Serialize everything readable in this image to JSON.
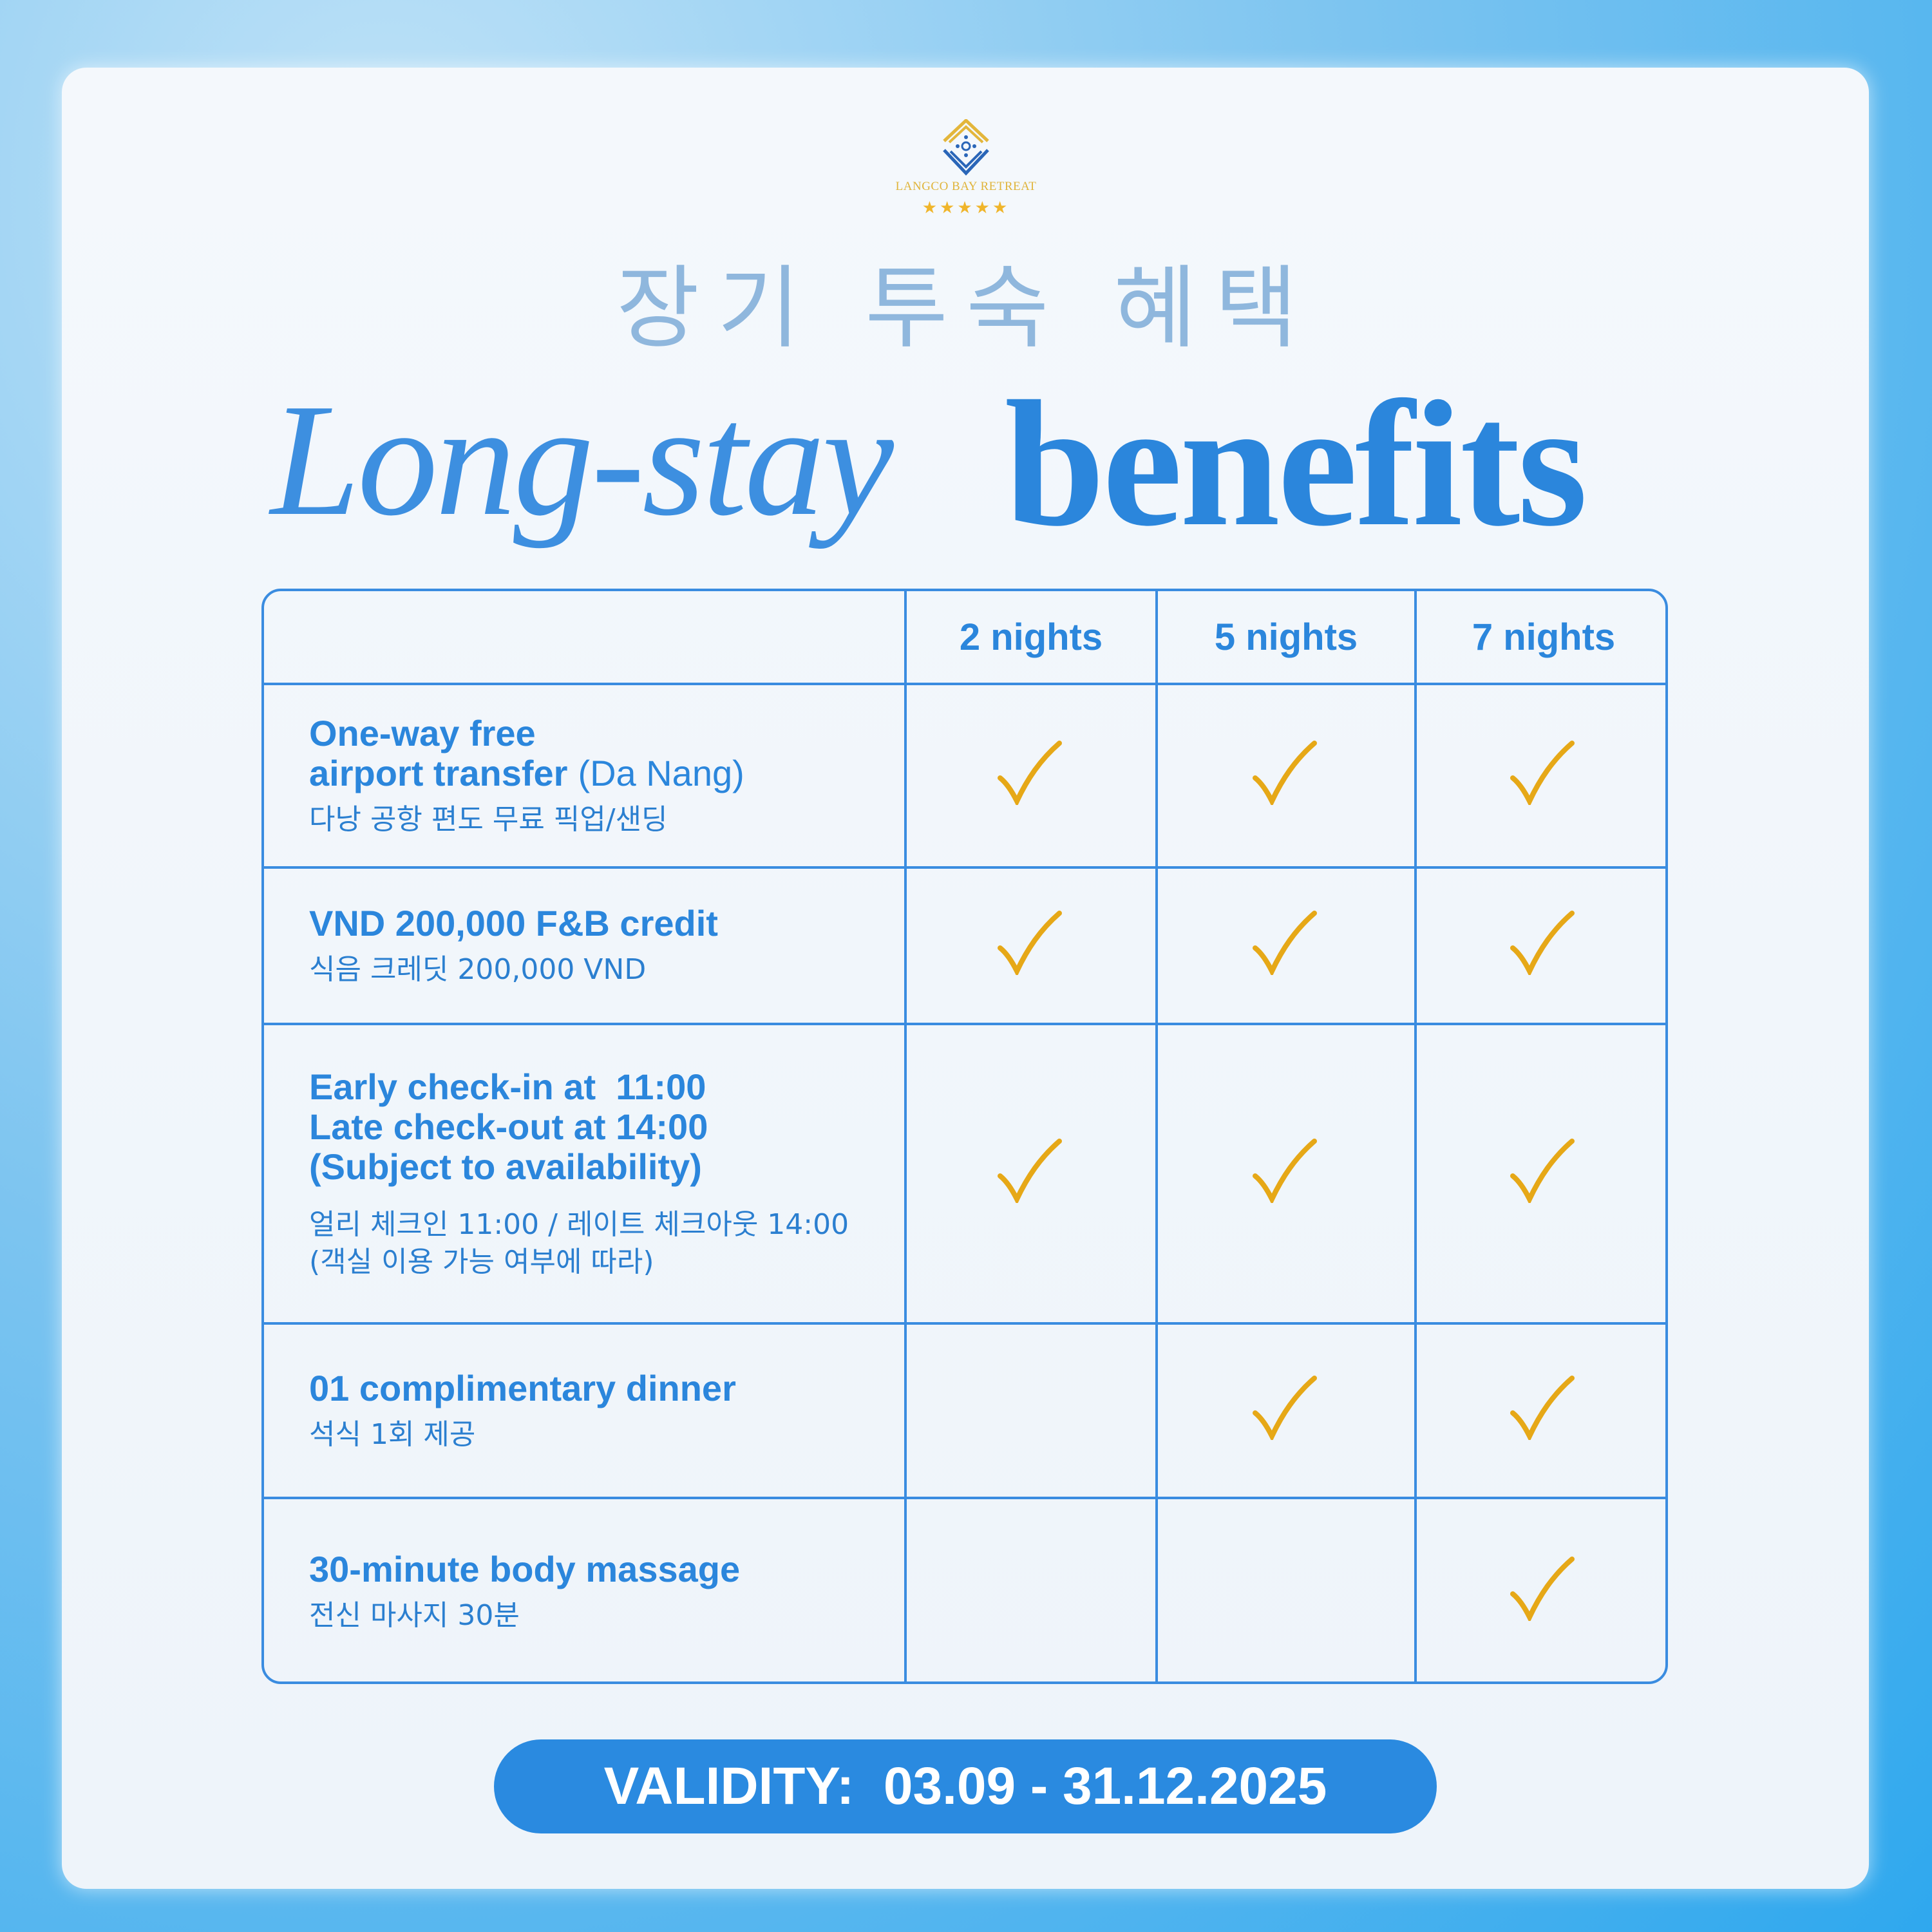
{
  "logo": {
    "brand": "LANGCO BAY RETREAT",
    "stars": "★★★★★"
  },
  "title": {
    "korean": "장기 투숙 혜택",
    "script": "Long-stay",
    "bold": "benefits"
  },
  "colors": {
    "primary": "#2b86dc",
    "check": "#e6a817",
    "gold": "#e0b43a"
  },
  "table": {
    "columns": [
      "",
      "2 nights",
      "5 nights",
      "7 nights"
    ],
    "rows": [
      {
        "en": [
          "One-way free",
          "airport transfer"
        ],
        "en_extra": "(Da Nang)",
        "ko": [
          "다낭 공항 편도 무료 픽업/샌딩"
        ],
        "checks": [
          true,
          true,
          true
        ]
      },
      {
        "en": [
          "VND 200,000 F&B credit"
        ],
        "ko": [
          "식음 크레딧 200,000 VND"
        ],
        "checks": [
          true,
          true,
          true
        ]
      },
      {
        "en": [
          "Early check-in at  11:00",
          "Late check-out at 14:00",
          "(Subject to availability)"
        ],
        "ko": [
          "얼리 체크인 11:00 / 레이트 체크아웃 14:00",
          "(객실 이용 가능 여부에 따라)"
        ],
        "checks": [
          true,
          true,
          true
        ]
      },
      {
        "en": [
          "01 complimentary dinner"
        ],
        "ko": [
          "석식 1회 제공"
        ],
        "checks": [
          false,
          true,
          true
        ]
      },
      {
        "en": [
          "30-minute body massage"
        ],
        "ko": [
          "전신 마사지 30분"
        ],
        "checks": [
          false,
          false,
          true
        ]
      }
    ]
  },
  "validity": "VALIDITY:  03.09 - 31.12.2025"
}
